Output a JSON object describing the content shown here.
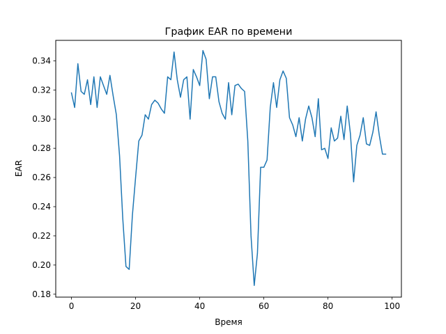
{
  "chart_data": {
    "type": "line",
    "title": "График EAR по времени",
    "xlabel": "Время",
    "ylabel": "EAR",
    "xlim": [
      -4.9,
      102.9
    ],
    "ylim": [
      0.178,
      0.354
    ],
    "xticks": [
      0,
      20,
      40,
      60,
      80,
      100
    ],
    "yticks": [
      0.18,
      0.2,
      0.22,
      0.24,
      0.26,
      0.28,
      0.3,
      0.32,
      0.34
    ],
    "ytick_labels": [
      "0.18",
      "0.20",
      "0.22",
      "0.24",
      "0.26",
      "0.28",
      "0.30",
      "0.32",
      "0.34"
    ],
    "grid": false,
    "line_color": "#1f77b4",
    "series": [
      {
        "x": [
          0,
          1,
          2,
          3,
          4,
          5,
          6,
          7,
          8,
          9,
          10,
          11,
          12,
          13,
          14,
          15,
          16,
          17,
          18,
          19,
          20,
          21,
          22,
          23,
          24,
          25,
          26,
          27,
          28,
          29,
          30,
          31,
          32,
          33,
          34,
          35,
          36,
          37,
          38,
          39,
          40,
          41,
          42,
          43,
          44,
          45,
          46,
          47,
          48,
          49,
          50,
          51,
          52,
          53,
          54,
          55,
          56,
          57,
          58,
          59,
          60,
          61,
          62,
          63,
          64,
          65,
          66,
          67,
          68,
          69,
          70,
          71,
          72,
          73,
          74,
          75,
          76,
          77,
          78,
          79,
          80,
          81,
          82,
          83,
          84,
          85,
          86,
          87,
          88,
          89,
          90,
          91,
          92,
          93,
          94,
          95,
          96,
          97,
          98
        ],
        "values": [
          0.318,
          0.308,
          0.338,
          0.319,
          0.317,
          0.327,
          0.31,
          0.329,
          0.308,
          0.329,
          0.323,
          0.317,
          0.33,
          0.316,
          0.303,
          0.275,
          0.232,
          0.199,
          0.197,
          0.234,
          0.26,
          0.285,
          0.289,
          0.303,
          0.3,
          0.31,
          0.313,
          0.311,
          0.307,
          0.304,
          0.329,
          0.327,
          0.346,
          0.327,
          0.315,
          0.327,
          0.329,
          0.3,
          0.334,
          0.329,
          0.323,
          0.347,
          0.341,
          0.314,
          0.329,
          0.329,
          0.312,
          0.304,
          0.3,
          0.325,
          0.303,
          0.323,
          0.324,
          0.321,
          0.319,
          0.285,
          0.22,
          0.186,
          0.208,
          0.267,
          0.267,
          0.272,
          0.308,
          0.325,
          0.308,
          0.327,
          0.333,
          0.328,
          0.301,
          0.296,
          0.288,
          0.301,
          0.285,
          0.3,
          0.309,
          0.301,
          0.288,
          0.314,
          0.279,
          0.28,
          0.273,
          0.294,
          0.285,
          0.287,
          0.302,
          0.286,
          0.309,
          0.29,
          0.257,
          0.282,
          0.289,
          0.301,
          0.283,
          0.282,
          0.291,
          0.305,
          0.289,
          0.276,
          0.276
        ]
      }
    ]
  }
}
